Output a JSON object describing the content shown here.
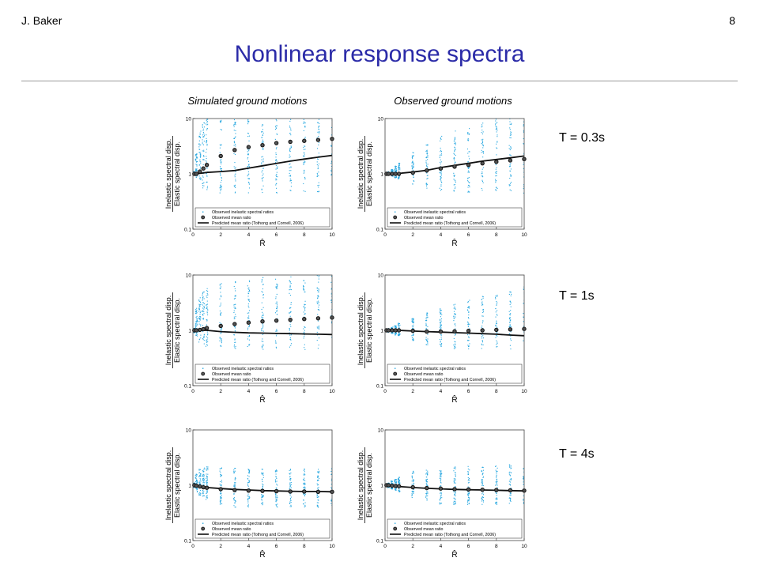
{
  "header": {
    "author": "J. Baker",
    "page_number": "8"
  },
  "title": "Nonlinear response spectra",
  "columns": [
    "Simulated ground motions",
    "Observed ground motions"
  ],
  "row_labels": [
    "T = 0.3s",
    "T = 1s",
    "T = 4s"
  ],
  "colors": {
    "title": "#2b2ba8",
    "scatter": "#29a8e0",
    "line": "#111111"
  },
  "chart_data": [
    {
      "type": "scatter",
      "panel": "simulated-T0.3s",
      "xlabel": "R̂",
      "ylabel": [
        "Inelastic spectral disp.",
        "Elastic spectral disp."
      ],
      "x_range": [
        0,
        10
      ],
      "y_range": [
        0.1,
        10
      ],
      "y_scale": "log",
      "x_ticks": [
        0,
        2,
        4,
        6,
        8,
        10
      ],
      "y_ticks": [
        0.1,
        1,
        10
      ],
      "legend": [
        "Observed inelastic spectral ratios",
        "Observed mean ratio",
        "Predicted mean ratio (Tothong and Cornell, 2006)"
      ],
      "legend_placement": "bottom",
      "x": [
        0.1,
        0.25,
        0.5,
        0.75,
        1,
        2,
        3,
        4,
        5,
        6,
        7,
        8,
        9,
        10
      ],
      "observed_mean": [
        1.0,
        1.0,
        1.1,
        1.25,
        1.45,
        2.1,
        2.7,
        3.05,
        3.3,
        3.6,
        3.8,
        3.95,
        4.1,
        4.3
      ],
      "predicted_mean": [
        1.0,
        1.0,
        1.02,
        1.04,
        1.06,
        1.1,
        1.15,
        1.27,
        1.4,
        1.55,
        1.7,
        1.85,
        2.0,
        2.15
      ],
      "spread": [
        [
          0.95,
          1.1
        ],
        [
          0.85,
          2.5
        ],
        [
          0.75,
          6
        ],
        [
          0.55,
          10
        ],
        [
          0.5,
          10
        ],
        [
          0.45,
          10
        ],
        [
          0.45,
          10
        ],
        [
          0.45,
          10
        ],
        [
          0.45,
          10
        ],
        [
          0.45,
          10
        ],
        [
          0.45,
          10
        ],
        [
          0.45,
          10
        ],
        [
          0.45,
          10
        ],
        [
          0.45,
          10
        ]
      ]
    },
    {
      "type": "scatter",
      "panel": "observed-T0.3s",
      "xlabel": "R̂",
      "ylabel": [
        "Inelastic spectral disp.",
        "Elastic spectral disp."
      ],
      "x_range": [
        0,
        10
      ],
      "y_range": [
        0.1,
        10
      ],
      "y_scale": "log",
      "x_ticks": [
        0,
        2,
        4,
        6,
        8,
        10
      ],
      "y_ticks": [
        0.1,
        1,
        10
      ],
      "legend": [
        "Observed inelastic spectral ratios",
        "Observed mean ratio",
        "Predicted mean ratio (Tothong and Cornell, 2006)"
      ],
      "legend_placement": "bottom",
      "x": [
        0.1,
        0.25,
        0.5,
        0.75,
        1,
        2,
        3,
        4,
        5,
        6,
        7,
        8,
        9,
        10
      ],
      "observed_mean": [
        1.0,
        1.0,
        1.0,
        1.0,
        1.0,
        1.05,
        1.15,
        1.25,
        1.35,
        1.45,
        1.55,
        1.65,
        1.75,
        1.85
      ],
      "predicted_mean": [
        1.0,
        1.0,
        1.0,
        1.01,
        1.02,
        1.08,
        1.16,
        1.3,
        1.42,
        1.55,
        1.7,
        1.82,
        1.95,
        2.1
      ],
      "spread": [
        [
          0.97,
          1.05
        ],
        [
          0.95,
          1.1
        ],
        [
          0.9,
          1.2
        ],
        [
          0.85,
          1.4
        ],
        [
          0.8,
          1.6
        ],
        [
          0.65,
          2.5
        ],
        [
          0.55,
          3.5
        ],
        [
          0.5,
          5
        ],
        [
          0.45,
          6.5
        ],
        [
          0.45,
          8
        ],
        [
          0.45,
          9
        ],
        [
          0.45,
          10
        ],
        [
          0.45,
          10
        ],
        [
          0.45,
          10
        ]
      ]
    },
    {
      "type": "scatter",
      "panel": "simulated-T1s",
      "xlabel": "R̂",
      "ylabel": [
        "Inelastic spectral disp.",
        "Elastic spectral disp."
      ],
      "x_range": [
        0,
        10
      ],
      "y_range": [
        0.1,
        10
      ],
      "y_scale": "log",
      "x_ticks": [
        0,
        2,
        4,
        6,
        8,
        10
      ],
      "y_ticks": [
        0.1,
        1,
        10
      ],
      "legend": [
        "Observed inelastic spectral ratios",
        "Observed mean ratio",
        "Predicted mean ratio (Tothong and Cornell, 2006)"
      ],
      "legend_placement": "bottom",
      "x": [
        0.1,
        0.25,
        0.5,
        0.75,
        1,
        2,
        3,
        4,
        5,
        6,
        7,
        8,
        9,
        10
      ],
      "observed_mean": [
        1.0,
        1.0,
        1.02,
        1.05,
        1.1,
        1.2,
        1.3,
        1.38,
        1.45,
        1.5,
        1.55,
        1.6,
        1.65,
        1.7
      ],
      "predicted_mean": [
        1.0,
        1.0,
        1.0,
        1.0,
        1.0,
        0.95,
        0.92,
        0.9,
        0.89,
        0.88,
        0.87,
        0.86,
        0.85,
        0.84
      ],
      "spread": [
        [
          0.9,
          1.1
        ],
        [
          0.75,
          2.5
        ],
        [
          0.6,
          4
        ],
        [
          0.55,
          5
        ],
        [
          0.5,
          6
        ],
        [
          0.45,
          7
        ],
        [
          0.45,
          8
        ],
        [
          0.45,
          8.5
        ],
        [
          0.45,
          9
        ],
        [
          0.45,
          9
        ],
        [
          0.45,
          9.5
        ],
        [
          0.45,
          9.5
        ],
        [
          0.45,
          10
        ],
        [
          0.45,
          10
        ]
      ]
    },
    {
      "type": "scatter",
      "panel": "observed-T1s",
      "xlabel": "R̂",
      "ylabel": [
        "Inelastic spectral disp.",
        "Elastic spectral disp."
      ],
      "x_range": [
        0,
        10
      ],
      "y_range": [
        0.1,
        10
      ],
      "y_scale": "log",
      "x_ticks": [
        0,
        2,
        4,
        6,
        8,
        10
      ],
      "y_ticks": [
        0.1,
        1,
        10
      ],
      "legend": [
        "Observed inelastic spectral ratios",
        "Observed mean ratio",
        "Predicted mean ratio (Tothong and Cornell, 2006)"
      ],
      "legend_placement": "bottom",
      "x": [
        0.1,
        0.25,
        0.5,
        0.75,
        1,
        2,
        3,
        4,
        5,
        6,
        7,
        8,
        9,
        10
      ],
      "observed_mean": [
        1.0,
        1.0,
        1.0,
        1.0,
        1.0,
        0.98,
        0.95,
        0.95,
        0.96,
        0.98,
        1.0,
        1.02,
        1.04,
        1.06
      ],
      "predicted_mean": [
        1.0,
        1.0,
        1.0,
        1.0,
        1.0,
        0.97,
        0.95,
        0.93,
        0.91,
        0.89,
        0.87,
        0.85,
        0.82,
        0.8
      ],
      "spread": [
        [
          0.96,
          1.04
        ],
        [
          0.93,
          1.08
        ],
        [
          0.88,
          1.15
        ],
        [
          0.82,
          1.25
        ],
        [
          0.78,
          1.35
        ],
        [
          0.65,
          1.7
        ],
        [
          0.55,
          2.1
        ],
        [
          0.5,
          2.6
        ],
        [
          0.45,
          3.1
        ],
        [
          0.45,
          3.6
        ],
        [
          0.45,
          4.2
        ],
        [
          0.45,
          4.8
        ],
        [
          0.45,
          5.5
        ],
        [
          0.45,
          6.5
        ]
      ]
    },
    {
      "type": "scatter",
      "panel": "simulated-T4s",
      "xlabel": "R̂",
      "ylabel": [
        "Inelastic spectral disp.",
        "Elastic spectral disp."
      ],
      "x_range": [
        0,
        10
      ],
      "y_range": [
        0.1,
        10
      ],
      "y_scale": "log",
      "x_ticks": [
        0,
        2,
        4,
        6,
        8,
        10
      ],
      "y_ticks": [
        0.1,
        1,
        10
      ],
      "legend": [
        "Observed inelastic spectral ratios",
        "Observed mean ratio",
        "Predicted mean ratio (Tothong and Cornell, 2006)"
      ],
      "legend_placement": "bottom",
      "x": [
        0.1,
        0.25,
        0.5,
        0.75,
        1,
        2,
        3,
        4,
        5,
        6,
        7,
        8,
        9,
        10
      ],
      "observed_mean": [
        1.0,
        0.98,
        0.95,
        0.92,
        0.9,
        0.85,
        0.82,
        0.8,
        0.79,
        0.78,
        0.77,
        0.77,
        0.76,
        0.76
      ],
      "predicted_mean": [
        1.0,
        0.98,
        0.95,
        0.93,
        0.91,
        0.87,
        0.84,
        0.82,
        0.8,
        0.79,
        0.78,
        0.77,
        0.77,
        0.76
      ],
      "spread": [
        [
          0.9,
          1.1
        ],
        [
          0.75,
          1.6
        ],
        [
          0.65,
          2
        ],
        [
          0.6,
          2.1
        ],
        [
          0.55,
          2.2
        ],
        [
          0.45,
          2.1
        ],
        [
          0.4,
          2.1
        ],
        [
          0.4,
          2
        ],
        [
          0.4,
          2
        ],
        [
          0.4,
          2
        ],
        [
          0.4,
          2
        ],
        [
          0.4,
          2
        ],
        [
          0.4,
          2
        ],
        [
          0.4,
          2
        ]
      ]
    },
    {
      "type": "scatter",
      "panel": "observed-T4s",
      "xlabel": "R̂",
      "ylabel": [
        "Inelastic spectral disp.",
        "Elastic spectral disp."
      ],
      "x_range": [
        0,
        10
      ],
      "y_range": [
        0.1,
        10
      ],
      "y_scale": "log",
      "x_ticks": [
        0,
        2,
        4,
        6,
        8,
        10
      ],
      "y_ticks": [
        0.1,
        1,
        10
      ],
      "legend": [
        "Observed inelastic spectral ratios",
        "Observed mean ratio",
        "Predicted mean ratio (Tothong and Cornell, 2006)"
      ],
      "legend_placement": "bottom",
      "x": [
        0.1,
        0.25,
        0.5,
        0.75,
        1,
        2,
        3,
        4,
        5,
        6,
        7,
        8,
        9,
        10
      ],
      "observed_mean": [
        1.0,
        1.0,
        0.98,
        0.97,
        0.96,
        0.92,
        0.89,
        0.87,
        0.85,
        0.84,
        0.83,
        0.82,
        0.81,
        0.8
      ],
      "predicted_mean": [
        1.0,
        0.99,
        0.97,
        0.96,
        0.95,
        0.91,
        0.88,
        0.86,
        0.84,
        0.83,
        0.82,
        0.81,
        0.8,
        0.79
      ],
      "spread": [
        [
          0.95,
          1.05
        ],
        [
          0.9,
          1.1
        ],
        [
          0.85,
          1.2
        ],
        [
          0.8,
          1.3
        ],
        [
          0.75,
          1.4
        ],
        [
          0.6,
          1.8
        ],
        [
          0.5,
          2
        ],
        [
          0.45,
          2.1
        ],
        [
          0.45,
          2.2
        ],
        [
          0.45,
          2.2
        ],
        [
          0.45,
          2.3
        ],
        [
          0.45,
          2.3
        ],
        [
          0.45,
          2.4
        ],
        [
          0.45,
          2.5
        ]
      ]
    }
  ]
}
